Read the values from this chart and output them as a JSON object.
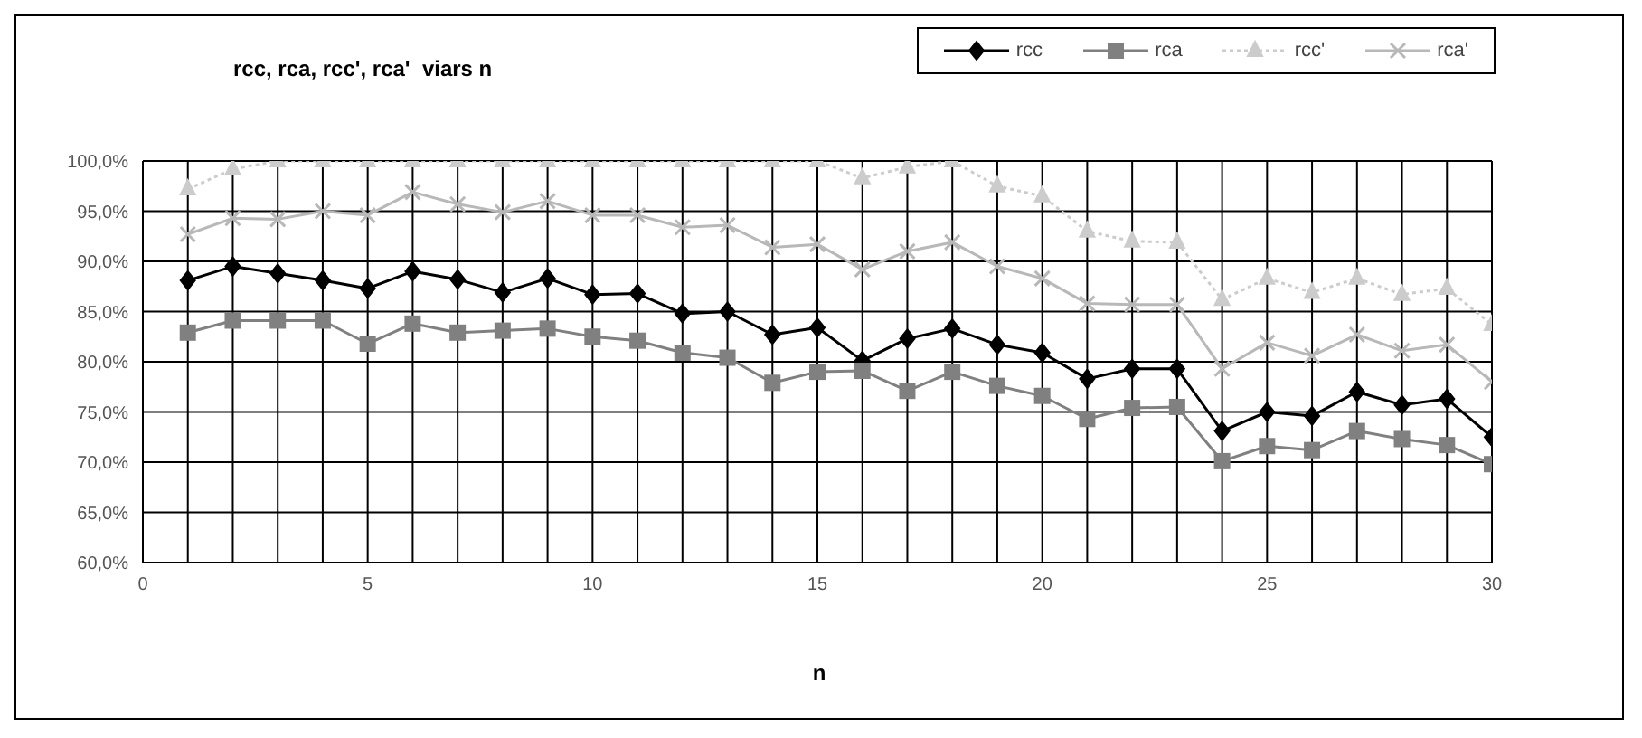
{
  "chart_data": {
    "type": "line",
    "title": "rcc, rca, rcc', rca'  viars n",
    "xlabel": "n",
    "x": [
      1,
      2,
      3,
      4,
      5,
      6,
      7,
      8,
      9,
      10,
      11,
      12,
      13,
      14,
      15,
      16,
      17,
      18,
      19,
      20,
      21,
      22,
      23,
      24,
      25,
      26,
      27,
      28,
      29,
      30
    ],
    "series": [
      {
        "name": "rcc",
        "color": "#000000",
        "marker": "diamond",
        "line_style": "solid",
        "values": [
          88.1,
          89.5,
          88.8,
          88.1,
          87.3,
          89.0,
          88.2,
          86.9,
          88.3,
          86.7,
          86.8,
          84.8,
          85.0,
          82.7,
          83.4,
          80.1,
          82.3,
          83.3,
          81.7,
          80.9,
          78.3,
          79.3,
          79.3,
          73.1,
          75.0,
          74.6,
          77.0,
          75.7,
          76.3,
          72.5
        ]
      },
      {
        "name": "rca",
        "color": "#808080",
        "marker": "square",
        "line_style": "solid",
        "values": [
          82.9,
          84.1,
          84.1,
          84.1,
          81.8,
          83.8,
          82.9,
          83.1,
          83.3,
          82.5,
          82.1,
          80.9,
          80.4,
          77.9,
          79.0,
          79.1,
          77.1,
          79.0,
          77.6,
          76.6,
          74.3,
          75.4,
          75.5,
          70.1,
          71.6,
          71.2,
          73.1,
          72.3,
          71.7,
          69.8
        ]
      },
      {
        "name": "rcc'",
        "color": "#cccccc",
        "marker": "triangle",
        "line_style": "dotted",
        "values": [
          97.2,
          99.2,
          100,
          100,
          100,
          100,
          100,
          100,
          100,
          100,
          100,
          100,
          100,
          100,
          100,
          98.3,
          99.4,
          100,
          97.5,
          96.5,
          93.0,
          92.0,
          91.9,
          86.2,
          88.3,
          86.9,
          88.3,
          86.7,
          87.3,
          83.7
        ]
      },
      {
        "name": "rca'",
        "color": "#b8b8b8",
        "marker": "cross",
        "line_style": "solid",
        "values": [
          92.7,
          94.3,
          94.2,
          95.0,
          94.6,
          96.9,
          95.7,
          94.9,
          96.0,
          94.6,
          94.6,
          93.4,
          93.6,
          91.4,
          91.7,
          89.2,
          91.0,
          91.9,
          89.5,
          88.3,
          85.8,
          85.7,
          85.7,
          79.3,
          81.9,
          80.6,
          82.7,
          81.1,
          81.7,
          78.0
        ]
      }
    ],
    "xlim": [
      0,
      30
    ],
    "xticks": [
      0,
      {
        "value": 1,
        "label": null
      },
      {
        "value": 2,
        "label": null
      },
      {
        "value": 3,
        "label": null
      },
      {
        "value": 4,
        "label": null
      },
      5,
      {
        "value": 6,
        "label": null
      },
      {
        "value": 7,
        "label": null
      },
      {
        "value": 8,
        "label": null
      },
      {
        "value": 9,
        "label": null
      },
      10,
      {
        "value": 11,
        "label": null
      },
      {
        "value": 12,
        "label": null
      },
      {
        "value": 13,
        "label": null
      },
      {
        "value": 14,
        "label": null
      },
      15,
      {
        "value": 16,
        "label": null
      },
      {
        "value": 17,
        "label": null
      },
      {
        "value": 18,
        "label": null
      },
      {
        "value": 19,
        "label": null
      },
      20,
      {
        "value": 21,
        "label": null
      },
      {
        "value": 22,
        "label": null
      },
      {
        "value": 23,
        "label": null
      },
      {
        "value": 24,
        "label": null
      },
      25,
      {
        "value": 26,
        "label": null
      },
      {
        "value": 27,
        "label": null
      },
      {
        "value": 28,
        "label": null
      },
      {
        "value": 29,
        "label": null
      },
      30
    ],
    "ylim": [
      60,
      100
    ],
    "yticks": [
      {
        "value": 60,
        "label": "60,0%"
      },
      {
        "value": 65,
        "label": "65,0%"
      },
      {
        "value": 70,
        "label": "70,0%"
      },
      {
        "value": 75,
        "label": "75,0%"
      },
      {
        "value": 80,
        "label": "80,0%"
      },
      {
        "value": 85,
        "label": "85,0%"
      },
      {
        "value": 90,
        "label": "90,0%"
      },
      {
        "value": 95,
        "label": "95,0%"
      },
      {
        "value": 100,
        "label": "100,0%"
      }
    ],
    "grid": true,
    "legend": "top right"
  }
}
